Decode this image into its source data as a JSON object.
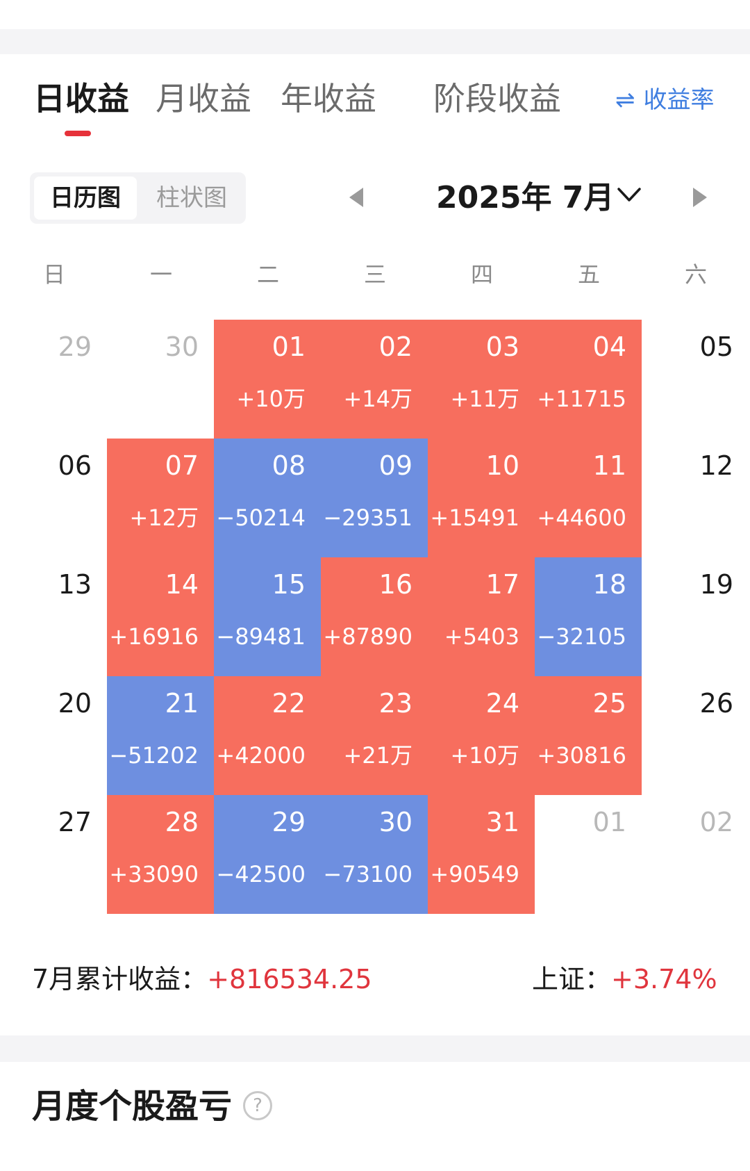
{
  "tabs": [
    {
      "label": "日收益",
      "active": true
    },
    {
      "label": "月收益",
      "active": false
    },
    {
      "label": "年收益",
      "active": false
    },
    {
      "label": "阶段收益",
      "active": false
    }
  ],
  "rate_toggle": {
    "icon": "swap-arrows-icon",
    "glyph": "⇌",
    "label": "收益率"
  },
  "view_switch": {
    "calendar_label": "日历图",
    "bar_label": "柱状图",
    "selected": "日历图"
  },
  "month_selector": {
    "title": "2025年 7月"
  },
  "weekdays": [
    "日",
    "一",
    "二",
    "三",
    "四",
    "五",
    "六"
  ],
  "colors": {
    "profit": "#f76e5e",
    "loss": "#6e8fe0",
    "positive_text": "#e0353d",
    "accent": "#3f7ee0"
  },
  "calendar": {
    "weeks": [
      [
        {
          "day": "29",
          "status": "muted"
        },
        {
          "day": "30",
          "status": "muted"
        },
        {
          "day": "01",
          "value": "+10万",
          "status": "pos"
        },
        {
          "day": "02",
          "value": "+14万",
          "status": "pos"
        },
        {
          "day": "03",
          "value": "+11万",
          "status": "pos"
        },
        {
          "day": "04",
          "value": "+11715",
          "status": "pos"
        },
        {
          "day": "05",
          "status": "plain"
        }
      ],
      [
        {
          "day": "06",
          "status": "plain"
        },
        {
          "day": "07",
          "value": "+12万",
          "status": "pos"
        },
        {
          "day": "08",
          "value": "−50214",
          "status": "neg"
        },
        {
          "day": "09",
          "value": "−29351",
          "status": "neg"
        },
        {
          "day": "10",
          "value": "+15491",
          "status": "pos"
        },
        {
          "day": "11",
          "value": "+44600",
          "status": "pos"
        },
        {
          "day": "12",
          "status": "plain"
        }
      ],
      [
        {
          "day": "13",
          "status": "plain"
        },
        {
          "day": "14",
          "value": "+16916",
          "status": "pos"
        },
        {
          "day": "15",
          "value": "−89481",
          "status": "neg"
        },
        {
          "day": "16",
          "value": "+87890",
          "status": "pos"
        },
        {
          "day": "17",
          "value": "+5403",
          "status": "pos"
        },
        {
          "day": "18",
          "value": "−32105",
          "status": "neg"
        },
        {
          "day": "19",
          "status": "plain"
        }
      ],
      [
        {
          "day": "20",
          "status": "plain"
        },
        {
          "day": "21",
          "value": "−51202",
          "status": "neg"
        },
        {
          "day": "22",
          "value": "+42000",
          "status": "pos"
        },
        {
          "day": "23",
          "value": "+21万",
          "status": "pos"
        },
        {
          "day": "24",
          "value": "+10万",
          "status": "pos"
        },
        {
          "day": "25",
          "value": "+30816",
          "status": "pos"
        },
        {
          "day": "26",
          "status": "plain"
        }
      ],
      [
        {
          "day": "27",
          "status": "plain"
        },
        {
          "day": "28",
          "value": "+33090",
          "status": "pos"
        },
        {
          "day": "29",
          "value": "−42500",
          "status": "neg"
        },
        {
          "day": "30",
          "value": "−73100",
          "status": "neg"
        },
        {
          "day": "31",
          "value": "+90549",
          "status": "pos"
        },
        {
          "day": "01",
          "status": "muted"
        },
        {
          "day": "02",
          "status": "muted"
        }
      ]
    ]
  },
  "summary": {
    "label": "7月累计收益：",
    "value": "+816534.25"
  },
  "index": {
    "label": "上证：",
    "value": "+3.74%"
  },
  "section": {
    "title": "月度个股盈亏",
    "help_icon": "help-icon",
    "help_glyph": "?"
  }
}
